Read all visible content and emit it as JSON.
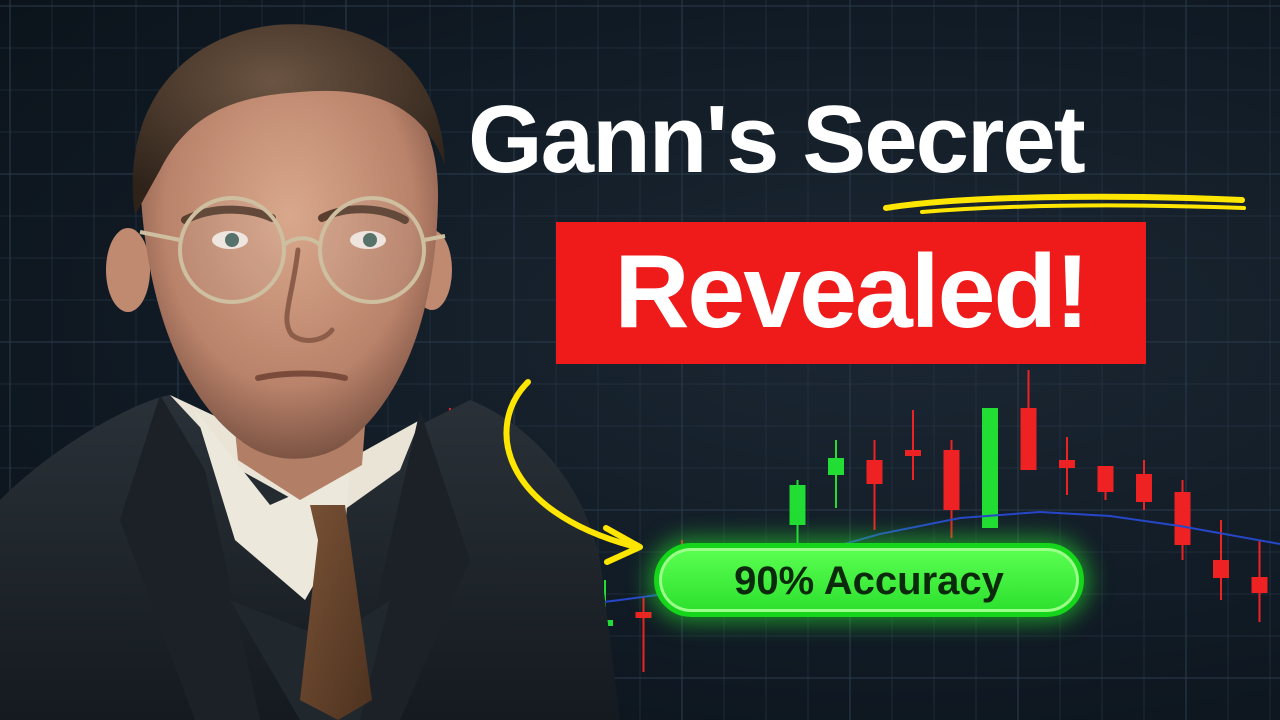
{
  "headline": {
    "line1_lead": "Gann's ",
    "line1_accent": "Secret",
    "line2": "Revealed!"
  },
  "badge": {
    "label": "90% Accuracy"
  },
  "colors": {
    "background": "#111b25",
    "grid": "#2a3a4a",
    "banner": "#ef1a1a",
    "badge": "#3df23a",
    "bullish": "#22dd33",
    "bearish": "#ee2222",
    "arrow": "#ffe600",
    "moving_average": "#2747c9"
  },
  "chart_data": {
    "type": "candlestick",
    "series": [
      {
        "o": 620,
        "h": 660,
        "l": 580,
        "c": 624,
        "dir": "up",
        "x": 0
      },
      {
        "o": 612,
        "h": 672,
        "l": 598,
        "c": 617,
        "dir": "down",
        "x": 1
      },
      {
        "o": 593,
        "h": 610,
        "l": 540,
        "c": 601,
        "dir": "down",
        "x": 2
      },
      {
        "o": 600,
        "h": 610,
        "l": 575,
        "c": 605,
        "dir": "up",
        "x": 3
      },
      {
        "o": 590,
        "h": 612,
        "l": 560,
        "c": 595,
        "dir": "down",
        "x": 4
      },
      {
        "o": 525,
        "h": 545,
        "l": 480,
        "c": 485,
        "dir": "up",
        "x": 5
      },
      {
        "o": 475,
        "h": 508,
        "l": 440,
        "c": 458,
        "dir": "up",
        "x": 6
      },
      {
        "o": 460,
        "h": 530,
        "l": 440,
        "c": 484,
        "dir": "down",
        "x": 7
      },
      {
        "o": 450,
        "h": 480,
        "l": 410,
        "c": 455,
        "dir": "down",
        "x": 8
      },
      {
        "o": 450,
        "h": 538,
        "l": 440,
        "c": 510,
        "dir": "down",
        "x": 9
      },
      {
        "o": 528,
        "h": 528,
        "l": 408,
        "c": 408,
        "dir": "up",
        "x": 10
      },
      {
        "o": 408,
        "h": 370,
        "l": 470,
        "c": 470,
        "dir": "down",
        "x": 11
      },
      {
        "o": 460,
        "h": 437,
        "l": 495,
        "c": 468,
        "dir": "down",
        "x": 12
      },
      {
        "o": 466,
        "h": 470,
        "l": 500,
        "c": 492,
        "dir": "down",
        "x": 13
      },
      {
        "o": 474,
        "h": 460,
        "l": 510,
        "c": 502,
        "dir": "down",
        "x": 14
      },
      {
        "o": 492,
        "h": 480,
        "l": 560,
        "c": 545,
        "dir": "down",
        "x": 15
      },
      {
        "o": 560,
        "h": 520,
        "l": 600,
        "c": 578,
        "dir": "down",
        "x": 16
      },
      {
        "o": 577,
        "h": 540,
        "l": 622,
        "c": 593,
        "dir": "down",
        "x": 17
      },
      {
        "o": 584,
        "h": 525,
        "l": 620,
        "c": 612,
        "dir": "down",
        "x": 18
      },
      {
        "o": 618,
        "h": 600,
        "l": 662,
        "c": 610,
        "dir": "up",
        "x": 19
      },
      {
        "o": 612,
        "h": 575,
        "l": 640,
        "c": 592,
        "dir": "up",
        "x": 20
      }
    ],
    "moving_average": [
      [
        570,
        606
      ],
      [
        620,
        600
      ],
      [
        680,
        592
      ],
      [
        760,
        570
      ],
      [
        830,
        548
      ],
      [
        880,
        534
      ],
      [
        960,
        518
      ],
      [
        1040,
        512
      ],
      [
        1110,
        516
      ],
      [
        1180,
        526
      ],
      [
        1280,
        544
      ]
    ]
  }
}
